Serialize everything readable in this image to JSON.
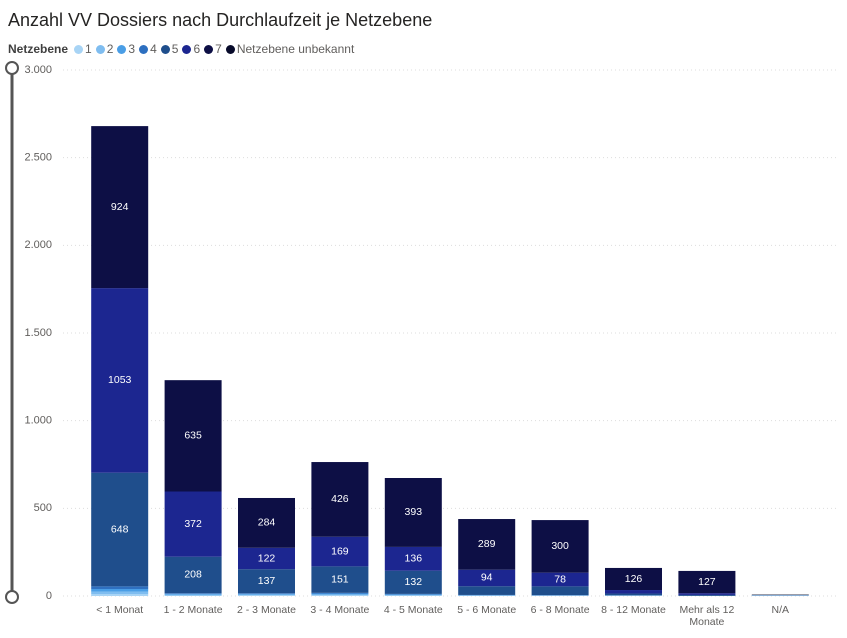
{
  "chart_data": {
    "type": "stacked_bar",
    "title": "Anzahl VV Dossiers nach Durchlaufzeit je Netzebene",
    "legend_title": "Netzebene",
    "categories": [
      "< 1 Monat",
      "1 - 2 Monate",
      "2 - 3 Monate",
      "3 - 4 Monate",
      "4 - 5 Monate",
      "5 - 6 Monate",
      "6 - 8 Monate",
      "8 - 12 Monate",
      "Mehr als 12 Monate",
      "N/A"
    ],
    "series": [
      {
        "name": "1",
        "color": "#a8d4f5",
        "values": [
          10,
          3,
          4,
          4,
          3,
          1,
          1,
          1,
          0,
          2
        ]
      },
      {
        "name": "2",
        "color": "#7fbdf0",
        "values": [
          15,
          5,
          4,
          5,
          3,
          2,
          1,
          1,
          0,
          1
        ]
      },
      {
        "name": "3",
        "color": "#4a9ee6",
        "values": [
          15,
          4,
          4,
          5,
          3,
          2,
          2,
          1,
          0,
          1
        ]
      },
      {
        "name": "4",
        "color": "#2d6fc0",
        "values": [
          15,
          4,
          4,
          4,
          3,
          1,
          1,
          1,
          1,
          1
        ]
      },
      {
        "name": "5",
        "color": "#1f4e8c",
        "values": [
          648,
          208,
          137,
          151,
          132,
          50,
          50,
          10,
          5,
          0
        ]
      },
      {
        "name": "6",
        "color": "#1c2690",
        "values": [
          1053,
          372,
          122,
          169,
          136,
          94,
          78,
          20,
          10,
          0
        ]
      },
      {
        "name": "7",
        "color": "#0d0f45",
        "values": [
          924,
          635,
          284,
          426,
          393,
          289,
          300,
          126,
          127,
          0
        ]
      },
      {
        "name": "Netzebene unbekannt",
        "color": "#070a2a",
        "values": [
          0,
          0,
          0,
          0,
          0,
          0,
          0,
          0,
          0,
          3
        ]
      }
    ],
    "ylim": [
      0,
      3000
    ],
    "yticks": [
      {
        "value": 0,
        "label": "0"
      },
      {
        "value": 500,
        "label": "500"
      },
      {
        "value": 1000,
        "label": "1.000"
      },
      {
        "value": 1500,
        "label": "1.500"
      },
      {
        "value": 2000,
        "label": "2.000"
      },
      {
        "value": 2500,
        "label": "2.500"
      },
      {
        "value": 3000,
        "label": "3.000"
      }
    ],
    "grid": true
  }
}
